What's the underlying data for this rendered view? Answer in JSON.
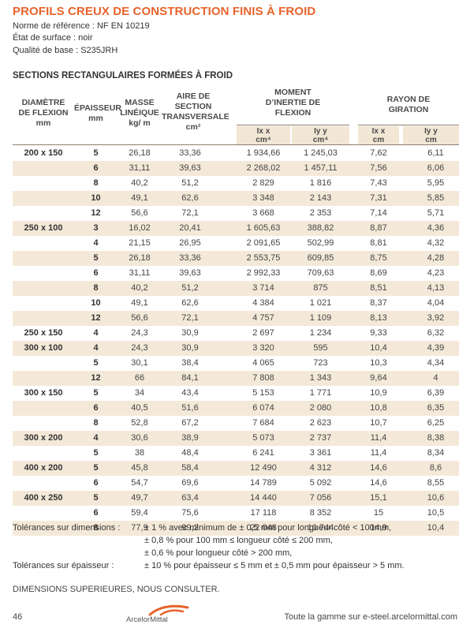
{
  "title": "PROFILS CREUX DE CONSTRUCTION FINIS À FROID",
  "meta": {
    "norm": "Norme de référence : NF EN 10219",
    "surface": "État de surface : noir",
    "quality": "Qualité de base : S235JRH"
  },
  "section_title": "SECTIONS RECTANGULAIRES FORMÉES À FROID",
  "headers": {
    "dim": [
      "DIAMÈTRE",
      "DE FLEXION",
      "mm"
    ],
    "thk": [
      "ÉPAISSEUR",
      "mm"
    ],
    "mass": [
      "MASSE",
      "LINÉIQUE",
      "kg/ m"
    ],
    "area": [
      "AIRE DE",
      "SECTION",
      "TRANSVERSALE",
      "cm²"
    ],
    "moment": [
      "MOMENT",
      "D’INERTIE DE",
      "FLEXION"
    ],
    "radius": [
      "RAYON DE",
      "GIRATION"
    ],
    "sub": {
      "ix": [
        "Ix x",
        "cm⁴"
      ],
      "iy": [
        "Iy y",
        "cm⁴"
      ],
      "rx": [
        "Ix x",
        "cm"
      ],
      "ry": [
        "Iy y",
        "cm"
      ]
    }
  },
  "rows": [
    {
      "dim": "200 x 150",
      "thk": "5",
      "mass": "26,18",
      "area": "33,36",
      "ix": "1 934,66",
      "iy": "1 245,03",
      "rx": "7,62",
      "ry": "6,11"
    },
    {
      "dim": "",
      "thk": "6",
      "mass": "31,11",
      "area": "39,63",
      "ix": "2 268,02",
      "iy": "1 457,11",
      "rx": "7,56",
      "ry": "6,06"
    },
    {
      "dim": "",
      "thk": "8",
      "mass": "40,2",
      "area": "51,2",
      "ix": "2 829",
      "iy": "1 816",
      "rx": "7,43",
      "ry": "5,95"
    },
    {
      "dim": "",
      "thk": "10",
      "mass": "49,1",
      "area": "62,6",
      "ix": "3 348",
      "iy": "2 143",
      "rx": "7,31",
      "ry": "5,85"
    },
    {
      "dim": "",
      "thk": "12",
      "mass": "56,6",
      "area": "72,1",
      "ix": "3 668",
      "iy": "2 353",
      "rx": "7,14",
      "ry": "5,71"
    },
    {
      "dim": "250 x 100",
      "thk": "3",
      "mass": "16,02",
      "area": "20,41",
      "ix": "1 605,63",
      "iy": "388,82",
      "rx": "8,87",
      "ry": "4,36"
    },
    {
      "dim": "",
      "thk": "4",
      "mass": "21,15",
      "area": "26,95",
      "ix": "2 091,65",
      "iy": "502,99",
      "rx": "8,81",
      "ry": "4,32"
    },
    {
      "dim": "",
      "thk": "5",
      "mass": "26,18",
      "area": "33,36",
      "ix": "2 553,75",
      "iy": "609,85",
      "rx": "8,75",
      "ry": "4,28"
    },
    {
      "dim": "",
      "thk": "6",
      "mass": "31,11",
      "area": "39,63",
      "ix": "2 992,33",
      "iy": "709,63",
      "rx": "8,69",
      "ry": "4,23"
    },
    {
      "dim": "",
      "thk": "8",
      "mass": "40,2",
      "area": "51,2",
      "ix": "3 714",
      "iy": "875",
      "rx": "8,51",
      "ry": "4,13"
    },
    {
      "dim": "",
      "thk": "10",
      "mass": "49,1",
      "area": "62,6",
      "ix": "4 384",
      "iy": "1 021",
      "rx": "8,37",
      "ry": "4,04"
    },
    {
      "dim": "",
      "thk": "12",
      "mass": "56,6",
      "area": "72,1",
      "ix": "4 757",
      "iy": "1 109",
      "rx": "8,13",
      "ry": "3,92"
    },
    {
      "dim": "250 x 150",
      "thk": "4",
      "mass": "24,3",
      "area": "30,9",
      "ix": "2 697",
      "iy": "1 234",
      "rx": "9,33",
      "ry": "6,32"
    },
    {
      "dim": "300 x 100",
      "thk": "4",
      "mass": "24,3",
      "area": "30,9",
      "ix": "3 320",
      "iy": "595",
      "rx": "10,4",
      "ry": "4,39"
    },
    {
      "dim": "",
      "thk": "5",
      "mass": "30,1",
      "area": "38,4",
      "ix": "4 065",
      "iy": "723",
      "rx": "10,3",
      "ry": "4,34"
    },
    {
      "dim": "",
      "thk": "12",
      "mass": "66",
      "area": "84,1",
      "ix": "7 808",
      "iy": "1 343",
      "rx": "9,64",
      "ry": "4"
    },
    {
      "dim": "300 x 150",
      "thk": "5",
      "mass": "34",
      "area": "43,4",
      "ix": "5 153",
      "iy": "1 771",
      "rx": "10,9",
      "ry": "6,39"
    },
    {
      "dim": "",
      "thk": "6",
      "mass": "40,5",
      "area": "51,6",
      "ix": "6 074",
      "iy": "2 080",
      "rx": "10,8",
      "ry": "6,35"
    },
    {
      "dim": "",
      "thk": "8",
      "mass": "52,8",
      "area": "67,2",
      "ix": "7 684",
      "iy": "2 623",
      "rx": "10,7",
      "ry": "6,25"
    },
    {
      "dim": "300 x 200",
      "thk": "4",
      "mass": "30,6",
      "area": "38,9",
      "ix": "5 073",
      "iy": "2 737",
      "rx": "11,4",
      "ry": "8,38"
    },
    {
      "dim": "",
      "thk": "5",
      "mass": "38",
      "area": "48,4",
      "ix": "6 241",
      "iy": "3 361",
      "rx": "11,4",
      "ry": "8,34"
    },
    {
      "dim": "400 x 200",
      "thk": "5",
      "mass": "45,8",
      "area": "58,4",
      "ix": "12 490",
      "iy": "4 312",
      "rx": "14,6",
      "ry": "8,6"
    },
    {
      "dim": "",
      "thk": "6",
      "mass": "54,7",
      "area": "69,6",
      "ix": "14 789",
      "iy": "5 092",
      "rx": "14,6",
      "ry": "8,55"
    },
    {
      "dim": "400 x 250",
      "thk": "5",
      "mass": "49,7",
      "area": "63,4",
      "ix": "14 440",
      "iy": "7 056",
      "rx": "15,1",
      "ry": "10,6"
    },
    {
      "dim": "",
      "thk": "6",
      "mass": "59,4",
      "area": "75,6",
      "ix": "17 118",
      "iy": "8 352",
      "rx": "15",
      "ry": "10,5"
    },
    {
      "dim": "",
      "thk": "8",
      "mass": "77,9",
      "area": "99,2",
      "ix": "22 048",
      "iy": "10 744",
      "rx": "14,9",
      "ry": "10,4"
    }
  ],
  "tolerances": {
    "dim_label": "Tolérances sur dimensions :",
    "dim_lines": [
      "± 1 % avec minimum de ± 0,5 mm pour longueur côté < 100mm,",
      "± 0,8 % pour 100 mm ≤ longueur côté ≤ 200 mm,",
      "± 0,6 % pour longueur côté > 200 mm,"
    ],
    "thk_label": "Tolérances sur épaisseur :",
    "thk_line": "± 10 % pour épaisseur ≤ 5 mm et ± 0,5 mm pour épaisseur > 5 mm."
  },
  "footer": {
    "note": "DIMENSIONS SUPERIEURES, NOUS CONSULTER.",
    "page": "46",
    "logo_text": "ArcelorMittal",
    "website": "Toute la gamme sur e-steel.arcelormittal.com"
  },
  "colors": {
    "accent": "#e8632b",
    "row_shade": "#f4e9d8",
    "subheader_shade": "#f2e6d4"
  }
}
